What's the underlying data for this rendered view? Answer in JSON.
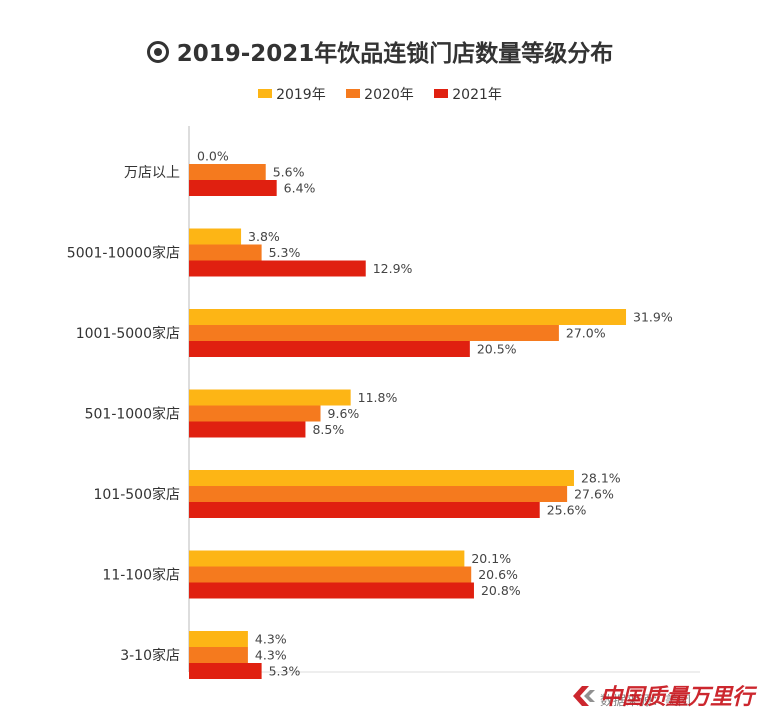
{
  "title": "2019-2021年饮品连锁门店数量等级分布",
  "source": "数据来源：美团",
  "watermark": "中国质量万里行",
  "colors": {
    "2019年": "#FDB515",
    "2020年": "#F57A1E",
    "2021年": "#E02010"
  },
  "chart_data": {
    "type": "bar",
    "orientation": "horizontal",
    "title": "2019-2021年饮品连锁门店数量等级分布",
    "categories": [
      "万店以上",
      "5001-10000家店",
      "1001-5000家店",
      "501-1000家店",
      "101-500家店",
      "11-100家店",
      "3-10家店"
    ],
    "series": [
      {
        "name": "2019年",
        "values": [
          0.0,
          3.8,
          31.9,
          11.8,
          28.1,
          20.1,
          4.3
        ]
      },
      {
        "name": "2020年",
        "values": [
          5.6,
          5.3,
          27.0,
          9.6,
          27.6,
          20.6,
          4.3
        ]
      },
      {
        "name": "2021年",
        "values": [
          6.4,
          12.9,
          20.5,
          8.5,
          25.6,
          20.8,
          5.3
        ]
      }
    ],
    "value_labels": true,
    "value_suffix": "%",
    "legend_position": "top",
    "grid": false
  }
}
